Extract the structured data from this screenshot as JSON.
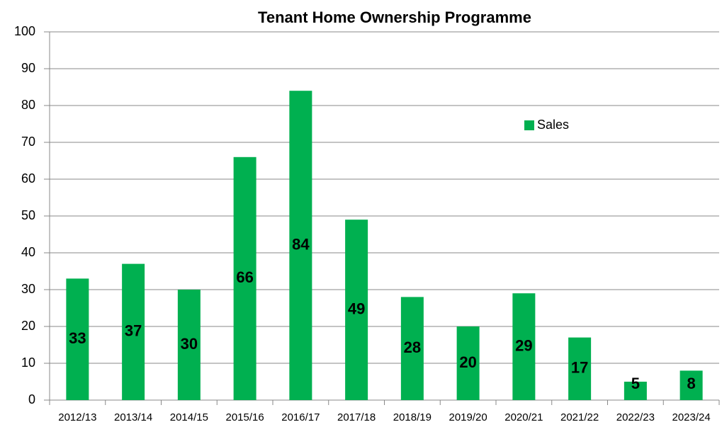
{
  "chart_data": {
    "type": "bar",
    "title": "Tenant Home Ownership Programme",
    "categories": [
      "2012/13",
      "2013/14",
      "2014/15",
      "2015/16",
      "2016/17",
      "2017/18",
      "2018/19",
      "2019/20",
      "2020/21",
      "2021/22",
      "2022/23",
      "2023/24"
    ],
    "series": [
      {
        "name": "Sales",
        "color": "#00b050",
        "values": [
          33,
          37,
          30,
          66,
          84,
          49,
          28,
          20,
          29,
          17,
          5,
          8
        ]
      }
    ],
    "ylim": [
      0,
      100
    ],
    "yticks": [
      0,
      10,
      20,
      30,
      40,
      50,
      60,
      70,
      80,
      90,
      100
    ],
    "grid": true,
    "legend": "right"
  }
}
